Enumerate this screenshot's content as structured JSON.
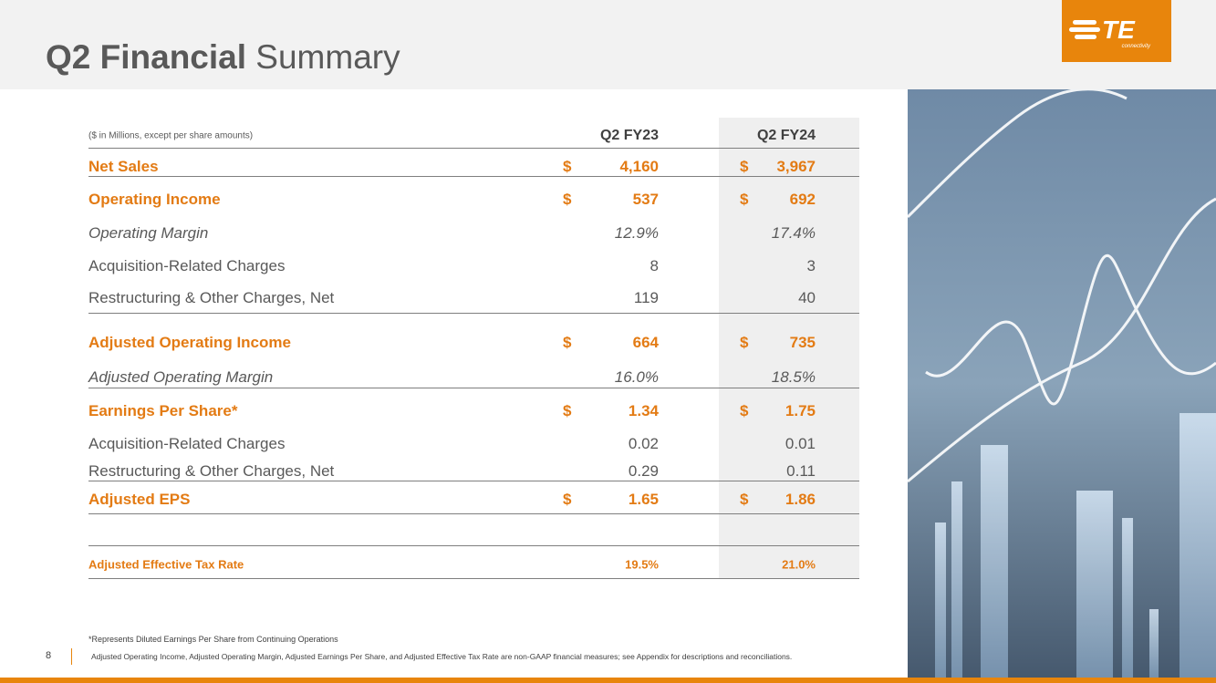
{
  "header": {
    "title_bold": "Q2 Financial",
    "title_rest": "Summary",
    "logo": "TE",
    "logo_sub": "connectivity"
  },
  "table": {
    "units_note": "($ in Millions, except per share amounts)",
    "columns": [
      "Q2 FY23",
      "Q2 FY24"
    ],
    "rows": [
      {
        "label": "Net Sales",
        "values": [
          {
            "currency": "$",
            "amount": "4,160"
          },
          {
            "currency": "$",
            "amount": "3,967"
          }
        ]
      },
      {
        "label": "Operating Income",
        "values": [
          {
            "currency": "$",
            "amount": "537"
          },
          {
            "currency": "$",
            "amount": "692"
          }
        ]
      },
      {
        "label": "Operating Margin",
        "values": [
          {
            "amount": "12.9%"
          },
          {
            "amount": "17.4%"
          }
        ]
      },
      {
        "label": "Acquisition-Related Charges",
        "values": [
          {
            "amount": "8"
          },
          {
            "amount": "3"
          }
        ]
      },
      {
        "label": "Restructuring & Other Charges, Net",
        "values": [
          {
            "amount": "119"
          },
          {
            "amount": "40"
          }
        ]
      },
      {
        "label": "Adjusted Operating Income",
        "values": [
          {
            "currency": "$",
            "amount": "664"
          },
          {
            "currency": "$",
            "amount": "735"
          }
        ]
      },
      {
        "label": "Adjusted Operating Margin",
        "values": [
          {
            "amount": "16.0%"
          },
          {
            "amount": "18.5%"
          }
        ]
      },
      {
        "label": "Earnings Per Share*",
        "values": [
          {
            "currency": "$",
            "amount": "1.34"
          },
          {
            "currency": "$",
            "amount": "1.75"
          }
        ]
      },
      {
        "label": "Acquisition-Related Charges",
        "values": [
          {
            "amount": "0.02"
          },
          {
            "amount": "0.01"
          }
        ]
      },
      {
        "label": "Restructuring & Other Charges, Net",
        "values": [
          {
            "amount": "0.29"
          },
          {
            "amount": "0.11"
          }
        ]
      },
      {
        "label": "Adjusted EPS",
        "values": [
          {
            "currency": "$",
            "amount": "1.65"
          },
          {
            "currency": "$",
            "amount": "1.86"
          }
        ]
      },
      {
        "label": "Adjusted Effective Tax Rate",
        "values": [
          {
            "amount": "19.5%"
          },
          {
            "amount": "21.0%"
          }
        ]
      }
    ]
  },
  "footnotes": [
    "*Represents Diluted Earnings Per Share from Continuing Operations",
    "Adjusted Operating Income, Adjusted Operating Margin, Adjusted Earnings Per Share, and Adjusted Effective Tax Rate are non-GAAP financial measures; see Appendix for descriptions and reconciliations."
  ],
  "page_number": "8"
}
